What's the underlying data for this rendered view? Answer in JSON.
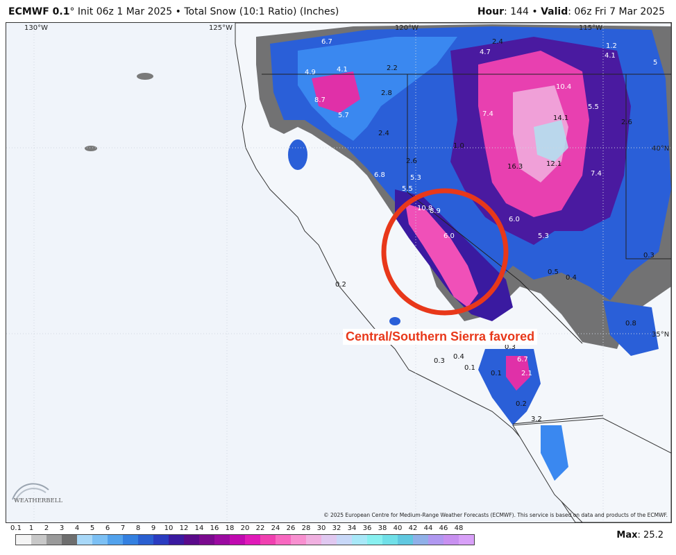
{
  "header": {
    "model": "ECMWF 0.1",
    "init_text": "° Init 06z 1 Mar 2025 • Total Snow (10:1 Ratio) (Inches)",
    "hour_label": "Hour",
    "hour_value": ": 144 • ",
    "valid_label": "Valid",
    "valid_value": ": 06z Fri 7 Mar 2025"
  },
  "longitude_labels": [
    "130°W",
    "125°W",
    "120°W",
    "115°W"
  ],
  "latitude_labels": [
    "40°N",
    "35°N"
  ],
  "annotation": "Central/Southern Sierra favored",
  "value_labels": [
    "6.7",
    "4.1",
    "4.9",
    "2.2",
    "2.4",
    "4.7",
    "1.2",
    "4.1",
    "5",
    "2.8",
    "8.7",
    "5.7",
    "10.4",
    "14.1",
    "5.5",
    "7.4",
    "2.6",
    "2.4",
    "1.0",
    "2.6",
    "16.3",
    "12.1",
    "7.4",
    "6.8",
    "5.3",
    "5.5",
    "10.8",
    "8.9",
    "6.0",
    "6.0",
    "5.3",
    "0.5",
    "0.4",
    "0.3",
    "0.2",
    "0.8",
    "0.3",
    "0.4",
    "0.1",
    "0.3",
    "0.1",
    "6.7",
    "2.1",
    "0.2",
    "3.2"
  ],
  "colorbar": {
    "tick_labels": [
      "0.1",
      "1",
      "2",
      "3",
      "4",
      "5",
      "6",
      "7",
      "8",
      "9",
      "10",
      "12",
      "14",
      "16",
      "18",
      "20",
      "22",
      "24",
      "26",
      "28",
      "30",
      "32",
      "34",
      "36",
      "38",
      "40",
      "42",
      "44",
      "46",
      "48"
    ],
    "colors": [
      "#f4f4f4",
      "#c8c8c8",
      "#9a9a9a",
      "#6e6e6e",
      "#a8d8f8",
      "#7cc0f4",
      "#52a2ec",
      "#3480e0",
      "#2a5fd0",
      "#2a3cc0",
      "#3a1aa0",
      "#5a0a8a",
      "#7a0a8e",
      "#9a0aa0",
      "#c00ab0",
      "#e01ab8",
      "#f040b0",
      "#f868c0",
      "#f890d0",
      "#f0b0e0",
      "#e0c8f0",
      "#c8d8f8",
      "#a8e8f8",
      "#88f0f0",
      "#70e0e8",
      "#60c8e0",
      "#90b0e8",
      "#b098f0",
      "#c890f0",
      "#d8a0f8"
    ]
  },
  "max_label": "Max",
  "max_value": ": 25.2",
  "copyright": "© 2025 European Centre for Medium-Range Weather Forecasts (ECMWF). This service is based on data and products of the ECMWF.",
  "logo_text": "WEATHERBELL"
}
